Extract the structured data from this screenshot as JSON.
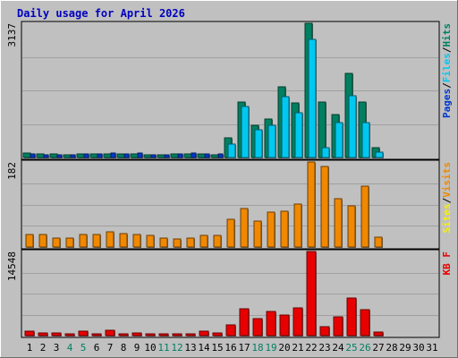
{
  "chart_data": {
    "type": "bar",
    "title": "Daily usage for April 2026",
    "categories": [
      "1",
      "2",
      "3",
      "4",
      "5",
      "6",
      "7",
      "8",
      "9",
      "10",
      "11",
      "12",
      "13",
      "14",
      "15",
      "16",
      "17",
      "18",
      "19",
      "20",
      "21",
      "22",
      "23",
      "24",
      "25",
      "26",
      "27",
      "28",
      "29",
      "30",
      "31"
    ],
    "weekend_days": [
      "4",
      "5",
      "11",
      "12",
      "18",
      "19",
      "25",
      "26"
    ],
    "panels": [
      {
        "id": "hits",
        "ymax_label": "3137",
        "ymax": 3137,
        "ylabel_parts": [
          "Pages",
          "Files",
          "Hits"
        ],
        "series": [
          {
            "name": "Hits",
            "color": "#008060",
            "values": [
              110,
              80,
              80,
              70,
              90,
              80,
              90,
              80,
              80,
              70,
              60,
              90,
              80,
              90,
              70,
              450,
              1290,
              760,
              900,
              1650,
              1280,
              3137,
              1300,
              1000,
              1960,
              1300,
              220,
              0,
              0,
              0,
              0
            ]
          },
          {
            "name": "Files",
            "color": "#00c8f0",
            "values": [
              0,
              0,
              0,
              0,
              0,
              0,
              0,
              0,
              0,
              0,
              0,
              0,
              0,
              0,
              0,
              310,
              1200,
              640,
              750,
              1420,
              1040,
              2760,
              240,
              820,
              1440,
              810,
              130,
              0,
              0,
              0,
              0
            ]
          },
          {
            "name": "Pages",
            "color": "#0038d0",
            "values": [
              90,
              70,
              70,
              60,
              90,
              90,
              100,
              90,
              100,
              70,
              70,
              90,
              100,
              90,
              80,
              0,
              0,
              0,
              0,
              0,
              0,
              0,
              0,
              0,
              0,
              0,
              0,
              0,
              0,
              0,
              0
            ]
          }
        ]
      },
      {
        "id": "visits",
        "ymax_label": "182",
        "ymax": 182,
        "ylabel_parts": [
          "Sites",
          "Visits"
        ],
        "series": [
          {
            "name": "Visits",
            "color": "#f08800",
            "values": [
              26,
              26,
              20,
              20,
              27,
              27,
              32,
              29,
              27,
              25,
              20,
              18,
              20,
              24,
              24,
              60,
              82,
              56,
              75,
              77,
              92,
              182,
              172,
              104,
              88,
              130,
              22,
              0,
              0,
              0,
              0
            ]
          },
          {
            "name": "Sites",
            "color": "#f8f000",
            "values": [
              0,
              0,
              0,
              0,
              0,
              0,
              0,
              0,
              0,
              0,
              0,
              0,
              0,
              0,
              0,
              0,
              0,
              0,
              0,
              0,
              0,
              0,
              0,
              0,
              0,
              0,
              0,
              0,
              0,
              0,
              0
            ]
          }
        ]
      },
      {
        "id": "kbytes",
        "ymax_label": "14548",
        "ymax": 14548,
        "ylabel_parts": [
          "KB F"
        ],
        "series": [
          {
            "name": "KB F",
            "color": "#e80000",
            "values": [
              700,
              500,
              400,
              300,
              800,
              150,
              900,
              300,
              400,
              300,
              150,
              250,
              300,
              700,
              500,
              1800,
              4600,
              3000,
              4200,
              3500,
              4800,
              14548,
              1500,
              3300,
              6500,
              4500,
              600,
              0,
              0,
              0,
              0
            ]
          }
        ]
      }
    ]
  }
}
